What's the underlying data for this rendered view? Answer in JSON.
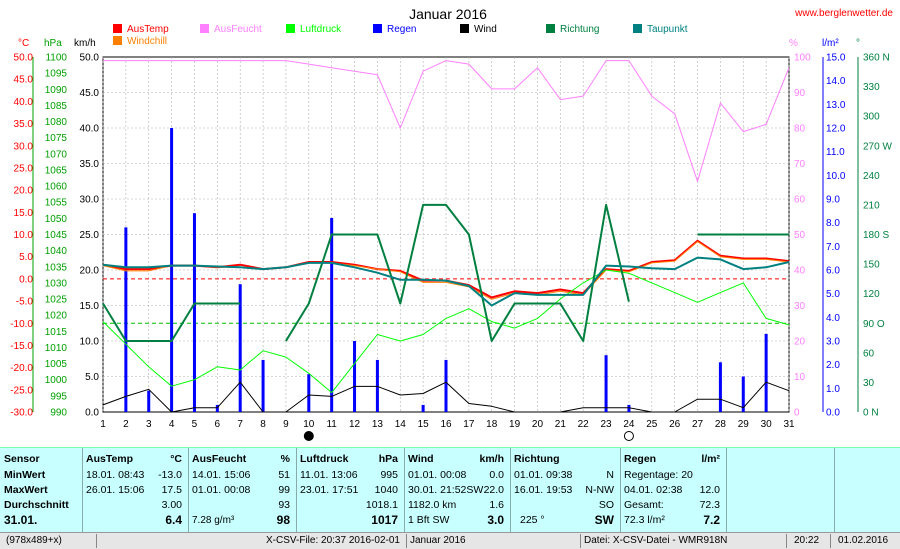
{
  "title": "Januar 2016",
  "website": "www.berglenwetter.de",
  "axis_units": {
    "temp": "°C",
    "pressure": "hPa",
    "wind": "km/h",
    "humidity": "%",
    "rain": "l/m²",
    "direction": "°"
  },
  "legend": [
    {
      "label": "AusTemp",
      "color": "#ff0000"
    },
    {
      "label": "Windchill",
      "color": "#ff8000"
    },
    {
      "label": "AusFeucht",
      "color": "#ff80ff"
    },
    {
      "label": "Luftdruck",
      "color": "#00ff00"
    },
    {
      "label": "Regen",
      "color": "#0000ff"
    },
    {
      "label": "Wind",
      "color": "#000000"
    },
    {
      "label": "Richtung",
      "color": "#008040"
    },
    {
      "label": "Taupunkt",
      "color": "#008080"
    }
  ],
  "chart_data": {
    "type": "line",
    "title": "Januar 2016",
    "x": [
      1,
      2,
      3,
      4,
      5,
      6,
      7,
      8,
      9,
      10,
      11,
      12,
      13,
      14,
      15,
      16,
      17,
      18,
      19,
      20,
      21,
      22,
      23,
      24,
      25,
      26,
      27,
      28,
      29,
      30,
      31
    ],
    "axes": {
      "temp": {
        "label": "°C",
        "range": [
          -30,
          50
        ],
        "ticks": [
          "50.0",
          "45.0",
          "40.0",
          "35.0",
          "30.0",
          "25.0",
          "20.0",
          "15.0",
          "10.0",
          "5.0",
          "0.0",
          "-5.0",
          "-10.0",
          "-15.0",
          "-20.0",
          "-25.0",
          "-30.0"
        ]
      },
      "pressure": {
        "label": "hPa",
        "range": [
          990,
          1100
        ],
        "ticks": [
          "1100",
          "1095",
          "1090",
          "1085",
          "1080",
          "1075",
          "1070",
          "1065",
          "1060",
          "1055",
          "1050",
          "1045",
          "1040",
          "1035",
          "1030",
          "1025",
          "1020",
          "1015",
          "1010",
          "1005",
          "1000",
          "995",
          "990"
        ]
      },
      "wind": {
        "label": "km/h",
        "range": [
          0,
          50
        ],
        "ticks": [
          "50.0",
          "45.0",
          "40.0",
          "35.0",
          "30.0",
          "25.0",
          "20.0",
          "15.0",
          "10.0",
          "5.0",
          "0.0"
        ]
      },
      "humidity": {
        "label": "%",
        "range": [
          0,
          100
        ],
        "ticks": [
          "100",
          "90",
          "80",
          "70",
          "60",
          "50",
          "40",
          "30",
          "20",
          "10",
          "0"
        ]
      },
      "rain": {
        "label": "l/m²",
        "range": [
          0,
          15
        ],
        "ticks": [
          "15.0",
          "14.0",
          "13.0",
          "12.0",
          "11.0",
          "10.0",
          "9.0",
          "8.0",
          "7.0",
          "6.0",
          "5.0",
          "4.0",
          "3.0",
          "2.0",
          "1.0",
          "0.0"
        ]
      },
      "direction": {
        "label": "°",
        "range": [
          0,
          360
        ],
        "ticks": [
          "360 N",
          "330",
          "300",
          "270 W",
          "240",
          "210",
          "180 S",
          "150",
          "120",
          "90 O",
          "60",
          "30",
          "0 N"
        ]
      }
    },
    "series": [
      {
        "name": "AusTemp",
        "axis": "temp",
        "color": "#ff0000",
        "width": 2,
        "values": [
          3.2,
          2.2,
          2.2,
          3.0,
          3.0,
          2.6,
          3.2,
          2.2,
          2.6,
          3.8,
          3.8,
          3.2,
          2.2,
          1.8,
          -0.4,
          -0.4,
          -1.4,
          -4.2,
          -2.8,
          -3.2,
          -2.4,
          -3.2,
          2.2,
          1.8,
          3.8,
          4.2,
          8.6,
          5.2,
          4.6,
          4.6,
          4.0
        ]
      },
      {
        "name": "Windchill",
        "axis": "temp",
        "color": "#ff8000",
        "width": 1,
        "values": [
          3.0,
          1.8,
          1.8,
          3.0,
          3.0,
          2.6,
          2.6,
          2.2,
          2.6,
          3.6,
          3.6,
          3.0,
          2.2,
          1.6,
          -0.8,
          -0.8,
          -1.8,
          -4.6,
          -3.2,
          -3.6,
          -2.8,
          -3.6,
          2.0,
          1.6,
          3.6,
          4.0,
          8.4,
          5.0,
          4.4,
          4.4,
          3.8
        ]
      },
      {
        "name": "AusFeucht",
        "axis": "humidity",
        "color": "#ff80ff",
        "width": 1,
        "values": [
          99,
          99,
          99,
          99,
          99,
          99,
          99,
          99,
          99,
          98,
          97,
          96,
          95,
          80,
          96,
          99,
          98,
          91,
          91,
          97,
          88,
          89,
          99,
          99,
          89,
          84,
          65,
          87,
          79,
          81,
          97
        ]
      },
      {
        "name": "Luftdruck",
        "axis": "pressure",
        "color": "#00ff00",
        "width": 1,
        "values": [
          1018,
          1011,
          1004,
          998,
          1000,
          1004,
          1003,
          1009,
          1007,
          1002,
          996,
          1005,
          1014,
          1012,
          1014,
          1019,
          1022,
          1018,
          1016,
          1019,
          1025,
          1030,
          1034,
          1033,
          1030,
          1027,
          1024,
          1027,
          1030,
          1019,
          1017
        ]
      },
      {
        "name": "Wind",
        "axis": "wind",
        "color": "#000000",
        "width": 1,
        "values": [
          1.0,
          2.2,
          3.2,
          0,
          0.6,
          0.6,
          4.2,
          0,
          0,
          2.4,
          2.2,
          3.6,
          3.6,
          2.4,
          2.6,
          4.2,
          1.2,
          0.8,
          0,
          0,
          0,
          0.6,
          0.6,
          0.6,
          0,
          0,
          1.8,
          1.8,
          0.6,
          4.2,
          3.0
        ]
      },
      {
        "name": "Richtung",
        "axis": "direction",
        "color": "#008040",
        "width": 2,
        "values": [
          110,
          72,
          72,
          72,
          110,
          110,
          110,
          null,
          72,
          110,
          180,
          180,
          180,
          110,
          210,
          210,
          180,
          72,
          110,
          110,
          110,
          72,
          210,
          112,
          null,
          null,
          180,
          180,
          180,
          180,
          180
        ]
      },
      {
        "name": "Taupunkt",
        "axis": "temp",
        "color": "#008080",
        "width": 2,
        "values": [
          3.2,
          2.6,
          2.6,
          3.0,
          3.0,
          2.8,
          2.6,
          2.2,
          2.6,
          3.6,
          3.6,
          2.6,
          1.4,
          -0.2,
          -0.2,
          -0.4,
          -1.6,
          -6.0,
          -3.2,
          -3.6,
          -3.6,
          -3.6,
          3.0,
          2.8,
          2.4,
          2.2,
          4.8,
          4.4,
          2.2,
          2.6,
          3.8
        ]
      }
    ],
    "bars": {
      "name": "Regen",
      "axis": "rain",
      "color": "#0000ff",
      "values": [
        0,
        7.8,
        0.9,
        12.0,
        8.4,
        0.3,
        5.4,
        2.2,
        0,
        1.6,
        8.2,
        3.0,
        2.2,
        0,
        0.3,
        2.2,
        0,
        0,
        0,
        0,
        0,
        0,
        2.4,
        0.3,
        0,
        0,
        0,
        2.1,
        1.5,
        3.3,
        0
      ]
    },
    "reference_lines": [
      {
        "axis": "temp",
        "value": 0,
        "color": "#ff0000"
      },
      {
        "axis": "direction",
        "value": 90,
        "color": "#00c000"
      }
    ],
    "moon_markers": [
      {
        "day": 10,
        "phase": "new"
      },
      {
        "day": 24,
        "phase": "full"
      }
    ]
  },
  "table": {
    "sensor": {
      "header": "Sensor",
      "rows": [
        "MinWert",
        "MaxWert",
        "Durchschnitt",
        "31.01."
      ]
    },
    "austemp": {
      "header": "AusTemp",
      "unit": "°C",
      "min_time": "18.01.  08:43",
      "min": "-13.0",
      "max_time": "26.01.  15:06",
      "max": "17.5",
      "avg": "3.00",
      "today": "6.4"
    },
    "ausfeucht": {
      "header": "AusFeucht",
      "unit": "%",
      "min_time": "14.01.  15:06",
      "min": "51",
      "max_time": "01.01.  00:08",
      "max": "99",
      "avg": "93",
      "today_extra": "7.28 g/m³",
      "today": "98"
    },
    "luftdruck": {
      "header": "Luftdruck",
      "unit": "hPa",
      "min_time": "11.01.  13:06",
      "min": "995",
      "max_time": "23.01.  17:51",
      "max": "1040",
      "avg": "1018.1",
      "today": "1017"
    },
    "wind": {
      "header": "Wind",
      "unit": "km/h",
      "min_time": "01.01.  00:08",
      "min": "0.0",
      "max_time": "30.01.  21:52SW",
      "max": "22.0",
      "avg_extra": "1182.0 km",
      "avg": "1.6",
      "today_extra": "1 Bft SW",
      "today": "3.0"
    },
    "richtung": {
      "header": "Richtung",
      "min_time": "01.01.  09:38",
      "min": "N",
      "max_time": "16.01.  19:53",
      "max": "N-NW",
      "avg": "SO",
      "today_extra": "225 °",
      "today": "SW"
    },
    "regen": {
      "header": "Regen",
      "unit": "l/m²",
      "row1": "Regentage: 20",
      "max_time": "04.01.  02:38",
      "max": "12.0",
      "sum_label": "Gesamt:",
      "sum": "72.3",
      "today_extra": "72.3 l/m²",
      "today": "7.2"
    }
  },
  "status_bar": {
    "size": "(978x489+x)",
    "file": "X-CSV-File:  20:37  2016-02-01",
    "month": "Januar 2016",
    "source": "Datei: X-CSV-Datei - WMR918N",
    "time": "20:22",
    "date": "01.02.2016"
  }
}
